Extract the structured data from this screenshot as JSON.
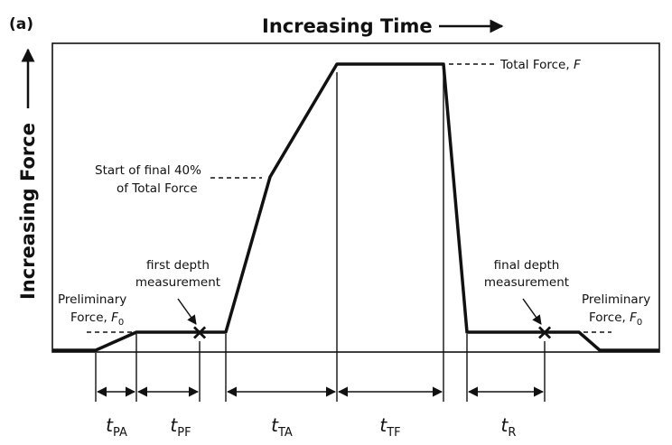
{
  "figure_label": "(a)",
  "x_axis_title": "Increasing Time",
  "y_axis_title": "Increasing Force",
  "annotations": {
    "total_force_text": "Total Force, ",
    "total_force_symbol": "F",
    "start_final_line1": "Start of final 40%",
    "start_final_line2": "of Total Force",
    "first_depth_line1": "first depth",
    "first_depth_line2": "measurement",
    "final_depth_line1": "final depth",
    "final_depth_line2": "measurement",
    "preliminary_line1": "Preliminary",
    "preliminary_line2": "Force, ",
    "preliminary_symbol": "F",
    "preliminary_sub": "0"
  },
  "intervals": [
    {
      "symbol": "t",
      "sub": "PA"
    },
    {
      "symbol": "t",
      "sub": "PF"
    },
    {
      "symbol": "t",
      "sub": "TA"
    },
    {
      "symbol": "t",
      "sub": "TF"
    },
    {
      "symbol": "t",
      "sub": "R"
    }
  ],
  "markers": {
    "measurement_symbol": "×"
  },
  "colors": {
    "line": "#111111",
    "background": "#ffffff"
  }
}
